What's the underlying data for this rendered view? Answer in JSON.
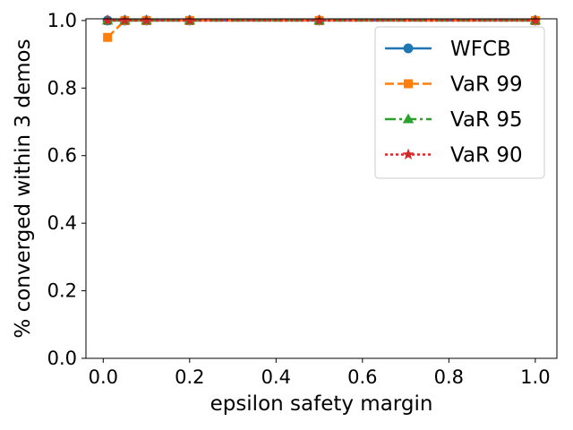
{
  "chart_data": {
    "type": "line",
    "xlabel": "epsilon safety margin",
    "ylabel": "% converged within 3 demos",
    "xlim": [
      -0.04,
      1.05
    ],
    "ylim": [
      0.0,
      1.005
    ],
    "xticks": [
      0.0,
      0.2,
      0.4,
      0.6,
      0.8,
      1.0
    ],
    "xtick_labels": [
      "0.0",
      "0.2",
      "0.4",
      "0.6",
      "0.8",
      "1.0"
    ],
    "yticks": [
      0.0,
      0.2,
      0.4,
      0.6,
      0.8,
      1.0
    ],
    "ytick_labels": [
      "0.0",
      "0.2",
      "0.4",
      "0.6",
      "0.8",
      "1.0"
    ],
    "grid": false,
    "legend_position": "top-right",
    "x": [
      0.01,
      0.05,
      0.1,
      0.2,
      0.5,
      1.0
    ],
    "series": [
      {
        "name": "WFCB",
        "values": [
          1.0,
          1.0,
          1.0,
          1.0,
          1.0,
          1.0
        ],
        "color": "#1f77b4",
        "marker": "circle",
        "dash": "solid"
      },
      {
        "name": "VaR 99",
        "values": [
          0.95,
          1.0,
          1.0,
          1.0,
          1.0,
          1.0
        ],
        "color": "#ff7f0e",
        "marker": "square",
        "dash": "dashed"
      },
      {
        "name": "VaR 95",
        "values": [
          1.0,
          1.0,
          1.0,
          1.0,
          1.0,
          1.0
        ],
        "color": "#2ca02c",
        "marker": "triangle",
        "dash": "dashdot"
      },
      {
        "name": "VaR 90",
        "values": [
          1.0,
          1.0,
          1.0,
          1.0,
          1.0,
          1.0
        ],
        "color": "#d62728",
        "marker": "star",
        "dash": "dotted"
      }
    ]
  }
}
